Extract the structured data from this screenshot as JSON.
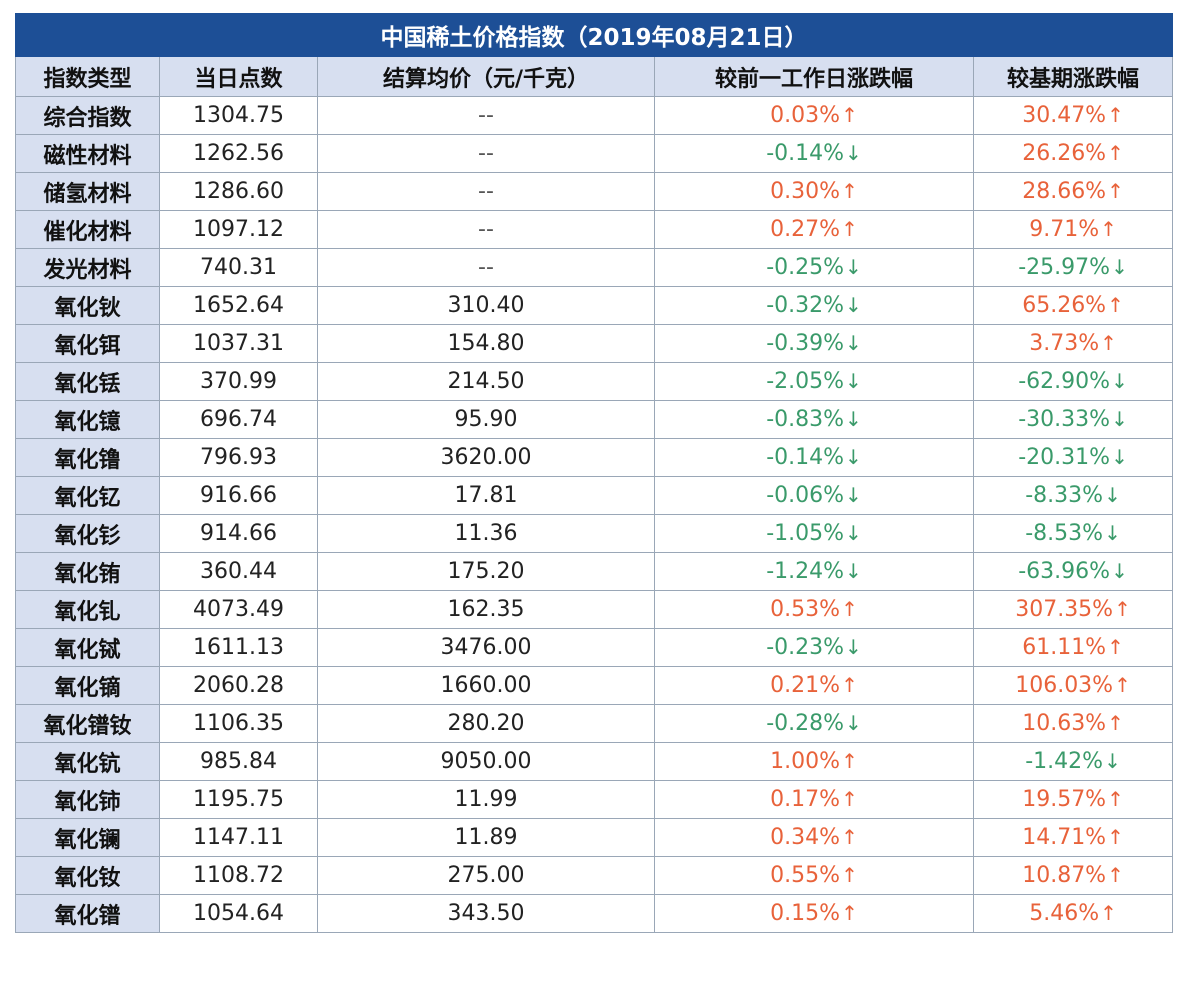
{
  "title": "中国稀土价格指数（2019年08月21日）",
  "headers": [
    "指数类型",
    "当日点数",
    "结算均价（元/千克）",
    "较前一工作日涨跌幅",
    "较基期涨跌幅"
  ],
  "rows": [
    {
      "type": "综合指数",
      "points": "1304.75",
      "price": "--",
      "dod": "0.03%",
      "dod_dir": "up",
      "base": "30.47%",
      "base_dir": "up"
    },
    {
      "type": "磁性材料",
      "points": "1262.56",
      "price": "--",
      "dod": "-0.14%",
      "dod_dir": "down",
      "base": "26.26%",
      "base_dir": "up"
    },
    {
      "type": "储氢材料",
      "points": "1286.60",
      "price": "--",
      "dod": "0.30%",
      "dod_dir": "up",
      "base": "28.66%",
      "base_dir": "up"
    },
    {
      "type": "催化材料",
      "points": "1097.12",
      "price": "--",
      "dod": "0.27%",
      "dod_dir": "up",
      "base": "9.71%",
      "base_dir": "up"
    },
    {
      "type": "发光材料",
      "points": "740.31",
      "price": "--",
      "dod": "-0.25%",
      "dod_dir": "down",
      "base": "-25.97%",
      "base_dir": "down"
    },
    {
      "type": "氧化钬",
      "points": "1652.64",
      "price": "310.40",
      "dod": "-0.32%",
      "dod_dir": "down",
      "base": "65.26%",
      "base_dir": "up"
    },
    {
      "type": "氧化铒",
      "points": "1037.31",
      "price": "154.80",
      "dod": "-0.39%",
      "dod_dir": "down",
      "base": "3.73%",
      "base_dir": "up"
    },
    {
      "type": "氧化铥",
      "points": "370.99",
      "price": "214.50",
      "dod": "-2.05%",
      "dod_dir": "down",
      "base": "-62.90%",
      "base_dir": "down"
    },
    {
      "type": "氧化镱",
      "points": "696.74",
      "price": "95.90",
      "dod": "-0.83%",
      "dod_dir": "down",
      "base": "-30.33%",
      "base_dir": "down"
    },
    {
      "type": "氧化镥",
      "points": "796.93",
      "price": "3620.00",
      "dod": "-0.14%",
      "dod_dir": "down",
      "base": "-20.31%",
      "base_dir": "down"
    },
    {
      "type": "氧化钇",
      "points": "916.66",
      "price": "17.81",
      "dod": "-0.06%",
      "dod_dir": "down",
      "base": "-8.33%",
      "base_dir": "down"
    },
    {
      "type": "氧化钐",
      "points": "914.66",
      "price": "11.36",
      "dod": "-1.05%",
      "dod_dir": "down",
      "base": "-8.53%",
      "base_dir": "down"
    },
    {
      "type": "氧化铕",
      "points": "360.44",
      "price": "175.20",
      "dod": "-1.24%",
      "dod_dir": "down",
      "base": "-63.96%",
      "base_dir": "down"
    },
    {
      "type": "氧化钆",
      "points": "4073.49",
      "price": "162.35",
      "dod": "0.53%",
      "dod_dir": "up",
      "base": "307.35%",
      "base_dir": "up"
    },
    {
      "type": "氧化铽",
      "points": "1611.13",
      "price": "3476.00",
      "dod": "-0.23%",
      "dod_dir": "down",
      "base": "61.11%",
      "base_dir": "up"
    },
    {
      "type": "氧化镝",
      "points": "2060.28",
      "price": "1660.00",
      "dod": "0.21%",
      "dod_dir": "up",
      "base": "106.03%",
      "base_dir": "up"
    },
    {
      "type": "氧化镨钕",
      "points": "1106.35",
      "price": "280.20",
      "dod": "-0.28%",
      "dod_dir": "down",
      "base": "10.63%",
      "base_dir": "up"
    },
    {
      "type": "氧化钪",
      "points": "985.84",
      "price": "9050.00",
      "dod": "1.00%",
      "dod_dir": "up",
      "base": "-1.42%",
      "base_dir": "down"
    },
    {
      "type": "氧化铈",
      "points": "1195.75",
      "price": "11.99",
      "dod": "0.17%",
      "dod_dir": "up",
      "base": "19.57%",
      "base_dir": "up"
    },
    {
      "type": "氧化镧",
      "points": "1147.11",
      "price": "11.89",
      "dod": "0.34%",
      "dod_dir": "up",
      "base": "14.71%",
      "base_dir": "up"
    },
    {
      "type": "氧化钕",
      "points": "1108.72",
      "price": "275.00",
      "dod": "0.55%",
      "dod_dir": "up",
      "base": "10.87%",
      "base_dir": "up"
    },
    {
      "type": "氧化镨",
      "points": "1054.64",
      "price": "343.50",
      "dod": "0.15%",
      "dod_dir": "up",
      "base": "5.46%",
      "base_dir": "up"
    }
  ],
  "arrows": {
    "up": "↑",
    "down": "↓"
  },
  "colors": {
    "title_bg": "#1d4f96",
    "header_bg": "#d7dff0",
    "up": "#e8623a",
    "down": "#3a9a6a"
  }
}
